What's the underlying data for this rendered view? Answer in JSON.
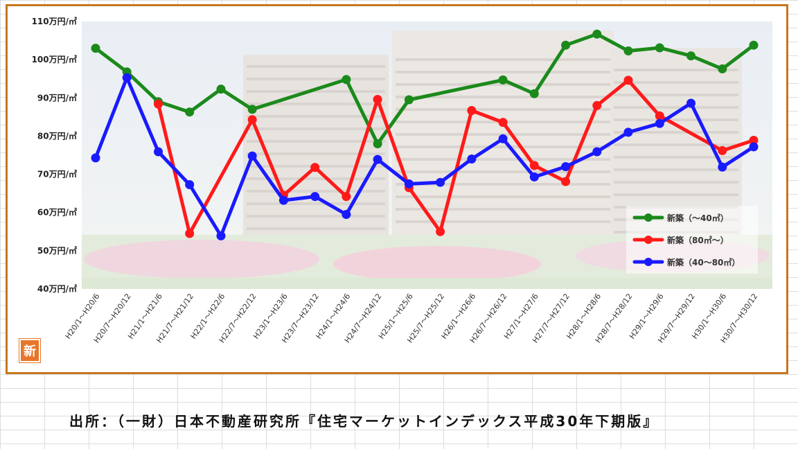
{
  "source_note": "出所：（一財）日本不動産研究所『住宅マーケットインデックス平成30年下期版』",
  "badge": "新",
  "chart_data": {
    "type": "line",
    "title": "",
    "xlabel": "",
    "ylabel": "",
    "ylim": [
      40,
      110
    ],
    "yticks": [
      40,
      50,
      60,
      70,
      80,
      90,
      100,
      110
    ],
    "ytick_labels": [
      "40万円/㎡",
      "50万円/㎡",
      "60万円/㎡",
      "70万円/㎡",
      "80万円/㎡",
      "90万円/㎡",
      "100万円/㎡",
      "110万円/㎡"
    ],
    "grid": false,
    "legend_position": "bottom-right",
    "categories": [
      "H20/1～H20/6",
      "H20/7～H20/12",
      "H21/1～H21/6",
      "H21/7～H21/12",
      "H22/1～H22/6",
      "H22/7～H22/12",
      "H23/1～H23/6",
      "H23/7～H23/12",
      "H24/1～H24/6",
      "H24/7～H24/12",
      "H25/1～H25/6",
      "H25/7～H25/12",
      "H26/1～H26/6",
      "H26/7～H26/12",
      "H27/1～H27/6",
      "H27/7～H27/12",
      "H28/1～H28/6",
      "H28/7～H28/12",
      "H29/1～H29/6",
      "H29/7～H29/12",
      "H30/1～H30/6",
      "H30/7～H30/12"
    ],
    "series": [
      {
        "name": "新築（～40㎡）",
        "color": "#1b8a1b",
        "points": [
          {
            "x": 0,
            "y": 103.0
          },
          {
            "x": 1,
            "y": 96.8
          },
          {
            "x": 2,
            "y": 89.0
          },
          {
            "x": 3,
            "y": 86.3
          },
          {
            "x": 4,
            "y": 92.3
          },
          {
            "x": 5,
            "y": 87.0
          },
          {
            "x": 8,
            "y": 94.8
          },
          {
            "x": 9,
            "y": 78.0
          },
          {
            "x": 10,
            "y": 89.5
          },
          {
            "x": 13,
            "y": 94.7
          },
          {
            "x": 14,
            "y": 91.1
          },
          {
            "x": 15,
            "y": 103.8
          },
          {
            "x": 16,
            "y": 106.7
          },
          {
            "x": 17,
            "y": 102.3
          },
          {
            "x": 18,
            "y": 103.1
          },
          {
            "x": 19,
            "y": 101.0
          },
          {
            "x": 20,
            "y": 97.6
          },
          {
            "x": 21,
            "y": 103.8
          }
        ]
      },
      {
        "name": "新築（80㎡～）",
        "color": "#ff1a1a",
        "points": [
          {
            "x": 2,
            "y": 88.4
          },
          {
            "x": 3,
            "y": 54.5
          },
          {
            "x": 5,
            "y": 84.3
          },
          {
            "x": 6,
            "y": 64.5
          },
          {
            "x": 7,
            "y": 71.8
          },
          {
            "x": 8,
            "y": 64.2
          },
          {
            "x": 9,
            "y": 89.6
          },
          {
            "x": 10,
            "y": 66.5
          },
          {
            "x": 11,
            "y": 55.0
          },
          {
            "x": 12,
            "y": 86.7
          },
          {
            "x": 13,
            "y": 83.6
          },
          {
            "x": 14,
            "y": 72.3
          },
          {
            "x": 15,
            "y": 68.1
          },
          {
            "x": 16,
            "y": 88.0
          },
          {
            "x": 17,
            "y": 94.6
          },
          {
            "x": 18,
            "y": 85.3
          },
          {
            "x": 20,
            "y": 76.2
          },
          {
            "x": 21,
            "y": 78.9
          }
        ]
      },
      {
        "name": "新築（40～80㎡）",
        "color": "#1a1aff",
        "points": [
          {
            "x": 0,
            "y": 74.3
          },
          {
            "x": 1,
            "y": 95.3
          },
          {
            "x": 2,
            "y": 75.9
          },
          {
            "x": 3,
            "y": 67.3
          },
          {
            "x": 4,
            "y": 53.9
          },
          {
            "x": 5,
            "y": 74.8
          },
          {
            "x": 6,
            "y": 63.2
          },
          {
            "x": 7,
            "y": 64.2
          },
          {
            "x": 8,
            "y": 59.5
          },
          {
            "x": 9,
            "y": 73.9
          },
          {
            "x": 10,
            "y": 67.5
          },
          {
            "x": 11,
            "y": 67.9
          },
          {
            "x": 12,
            "y": 74.0
          },
          {
            "x": 13,
            "y": 79.3
          },
          {
            "x": 14,
            "y": 69.3
          },
          {
            "x": 15,
            "y": 72.0
          },
          {
            "x": 16,
            "y": 75.9
          },
          {
            "x": 17,
            "y": 81.0
          },
          {
            "x": 18,
            "y": 83.3
          },
          {
            "x": 19,
            "y": 88.6
          },
          {
            "x": 20,
            "y": 71.9
          },
          {
            "x": 21,
            "y": 77.2
          }
        ]
      }
    ]
  }
}
